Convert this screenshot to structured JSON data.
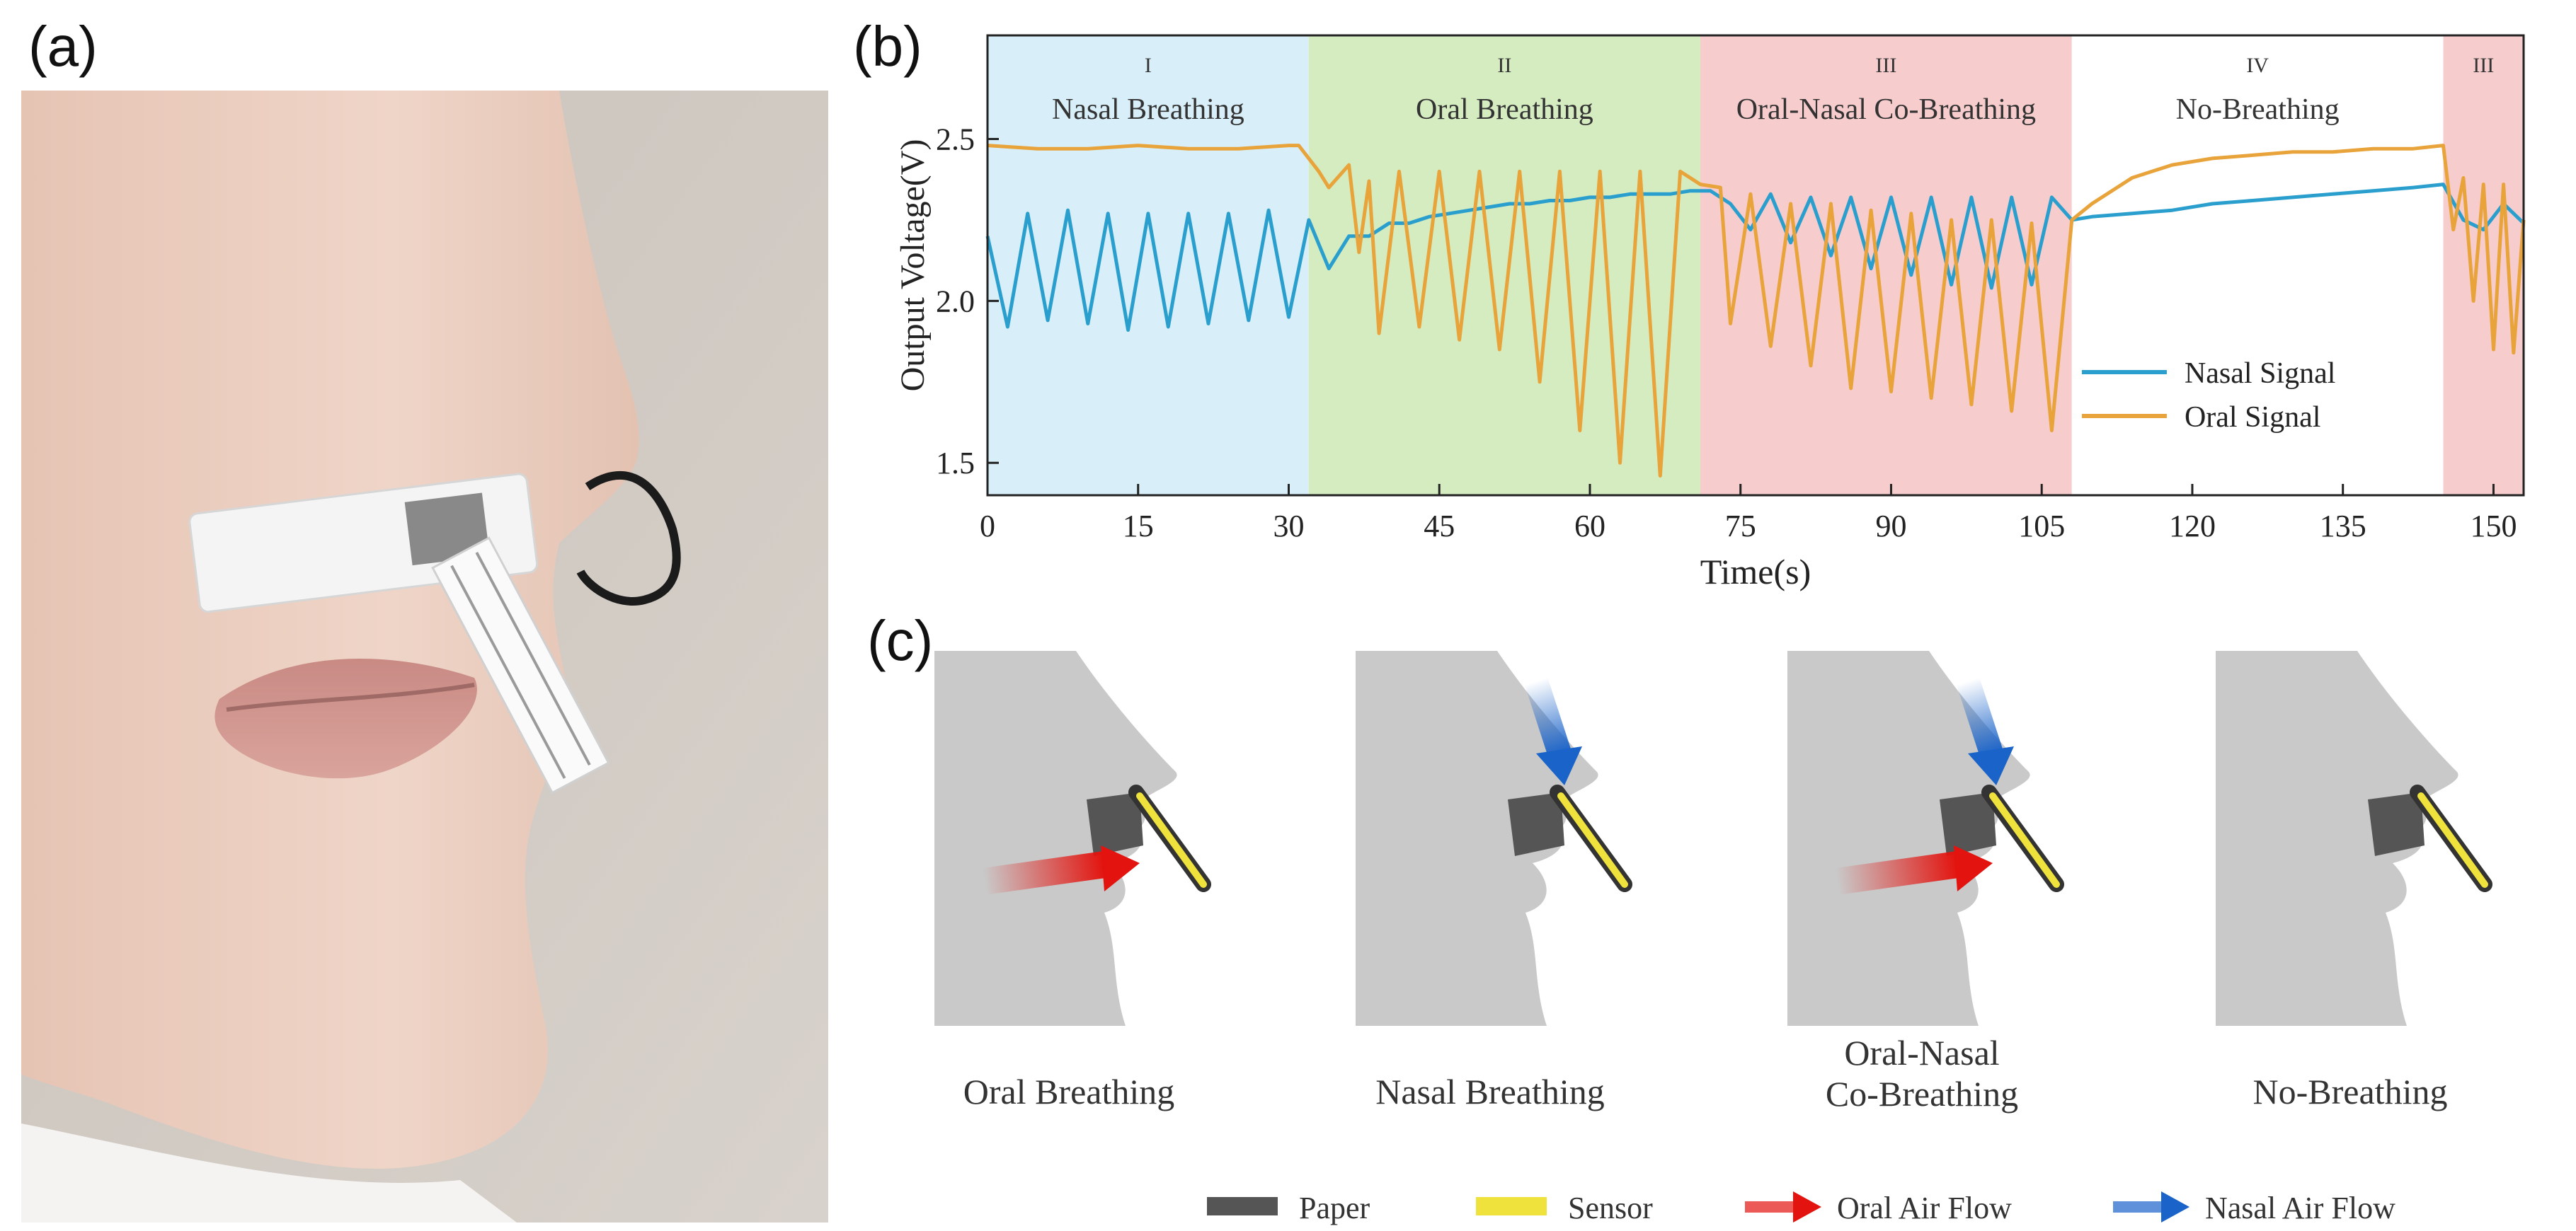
{
  "panels": {
    "a": {
      "label": "(a)"
    },
    "b": {
      "label": "(b)"
    },
    "c": {
      "label": "(c)"
    }
  },
  "colors": {
    "nasal": "#2a9fce",
    "oral": "#e8a33a",
    "co_oral": "#ee7a33",
    "co_nasal": "#6a70b8",
    "region_nasal": "#d8eef8",
    "region_oral": "#d4ecc0",
    "region_co": "#f6cccd",
    "region_none": "#ffffff",
    "head": "#c9c9c9",
    "paper": "#555555",
    "sensor": "#f0e23c",
    "oral_arrow": "#e3140f",
    "nasal_arrow": "#1a63c9"
  },
  "chart_data": {
    "type": "line",
    "xlabel": "Time(s)",
    "ylabel": "Output Voltage(V)",
    "xlim": [
      0,
      153
    ],
    "ylim": [
      1.4,
      2.82
    ],
    "xticks": [
      0,
      15,
      30,
      45,
      60,
      75,
      90,
      105,
      120,
      135,
      150
    ],
    "yticks": [
      1.5,
      2.0,
      2.5
    ],
    "regions": [
      {
        "numeral": "I",
        "label": "Nasal Breathing",
        "start": 0,
        "end": 32,
        "kind": "nasal"
      },
      {
        "numeral": "II",
        "label": "Oral Breathing",
        "start": 32,
        "end": 71,
        "kind": "oral"
      },
      {
        "numeral": "III",
        "label": "Oral-Nasal Co-Breathing",
        "start": 71,
        "end": 108,
        "kind": "co"
      },
      {
        "numeral": "IV",
        "label": "No-Breathing",
        "start": 108,
        "end": 145,
        "kind": "none"
      },
      {
        "numeral": "III",
        "label": "",
        "start": 145,
        "end": 153,
        "kind": "co"
      }
    ],
    "legend": [
      "Nasal Signal",
      "Oral Signal"
    ],
    "legend_position": "bottom-right",
    "series": [
      {
        "name": "Nasal Signal",
        "x": [
          0,
          2,
          4,
          6,
          8,
          10,
          12,
          14,
          16,
          18,
          20,
          22,
          24,
          26,
          28,
          30,
          32,
          34,
          36,
          38,
          40,
          42,
          44,
          46,
          48,
          50,
          52,
          54,
          56,
          58,
          60,
          62,
          64,
          66,
          68,
          70,
          72,
          74,
          76,
          78,
          80,
          82,
          84,
          86,
          88,
          90,
          92,
          94,
          96,
          98,
          100,
          102,
          104,
          106,
          108,
          110,
          114,
          118,
          122,
          126,
          130,
          134,
          138,
          142,
          145,
          147,
          149,
          151,
          153
        ],
        "values": [
          2.2,
          1.92,
          2.27,
          1.94,
          2.28,
          1.93,
          2.27,
          1.91,
          2.27,
          1.92,
          2.27,
          1.93,
          2.27,
          1.94,
          2.28,
          1.95,
          2.25,
          2.1,
          2.2,
          2.2,
          2.24,
          2.24,
          2.26,
          2.27,
          2.28,
          2.29,
          2.3,
          2.3,
          2.31,
          2.31,
          2.32,
          2.32,
          2.33,
          2.33,
          2.33,
          2.34,
          2.34,
          2.3,
          2.22,
          2.33,
          2.18,
          2.32,
          2.14,
          2.32,
          2.1,
          2.32,
          2.08,
          2.32,
          2.05,
          2.32,
          2.04,
          2.32,
          2.05,
          2.32,
          2.25,
          2.26,
          2.27,
          2.28,
          2.3,
          2.31,
          2.32,
          2.33,
          2.34,
          2.35,
          2.36,
          2.25,
          2.22,
          2.3,
          2.24
        ]
      },
      {
        "name": "Oral Signal",
        "x": [
          0,
          5,
          10,
          15,
          20,
          25,
          30,
          31,
          33,
          34,
          36,
          37,
          38,
          39,
          41,
          43,
          45,
          47,
          49,
          51,
          53,
          55,
          57,
          59,
          61,
          63,
          65,
          67,
          69,
          71,
          73,
          74,
          76,
          78,
          80,
          82,
          84,
          86,
          88,
          90,
          92,
          94,
          96,
          98,
          100,
          102,
          104,
          106,
          108,
          110,
          114,
          118,
          122,
          126,
          130,
          134,
          138,
          142,
          145,
          146,
          147,
          148,
          149,
          150,
          151,
          152,
          153
        ],
        "values": [
          2.48,
          2.47,
          2.47,
          2.48,
          2.47,
          2.47,
          2.48,
          2.48,
          2.4,
          2.35,
          2.42,
          2.15,
          2.37,
          1.9,
          2.4,
          1.92,
          2.4,
          1.88,
          2.4,
          1.85,
          2.4,
          1.75,
          2.4,
          1.6,
          2.4,
          1.5,
          2.4,
          1.46,
          2.4,
          2.36,
          2.35,
          1.93,
          2.33,
          1.86,
          2.3,
          1.8,
          2.3,
          1.73,
          2.28,
          1.72,
          2.27,
          1.7,
          2.25,
          1.68,
          2.25,
          1.66,
          2.24,
          1.6,
          2.25,
          2.3,
          2.38,
          2.42,
          2.44,
          2.45,
          2.46,
          2.46,
          2.47,
          2.47,
          2.48,
          2.22,
          2.38,
          2.0,
          2.36,
          1.85,
          2.36,
          1.84,
          2.25
        ]
      }
    ]
  },
  "scenes": [
    {
      "title_lines": [
        "Oral Breathing"
      ],
      "oral_flow": true,
      "nasal_flow": false
    },
    {
      "title_lines": [
        "Nasal Breathing"
      ],
      "oral_flow": false,
      "nasal_flow": true
    },
    {
      "title_lines": [
        "Oral-Nasal",
        "Co-Breathing"
      ],
      "oral_flow": true,
      "nasal_flow": true
    },
    {
      "title_lines": [
        "No-Breathing"
      ],
      "oral_flow": false,
      "nasal_flow": false
    }
  ],
  "legend_c": [
    {
      "label": "Paper",
      "kind": "paper"
    },
    {
      "label": "Sensor",
      "kind": "sensor"
    },
    {
      "label": "Oral Air Flow",
      "kind": "oral-arrow"
    },
    {
      "label": "Nasal Air Flow",
      "kind": "nasal-arrow"
    }
  ]
}
